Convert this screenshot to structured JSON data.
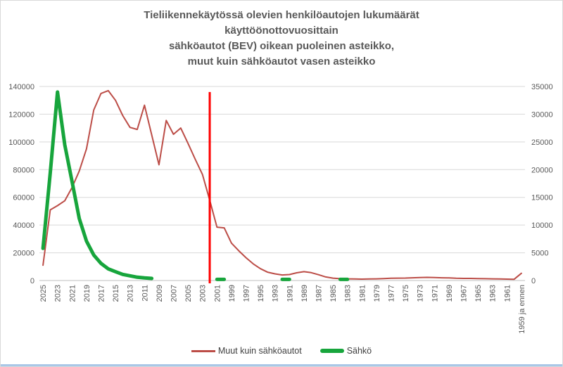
{
  "chart_data": {
    "type": "line",
    "title": "Tieliikennekäytössä olevien henkilöautojen lukumäärät\nkäyttöönottovuosittain\nsähköautot (BEV) oikean puoleinen asteikko,\nmuut kuin sähköautot vasen asteikko",
    "categories": [
      "2025",
      "2024",
      "2023",
      "2022",
      "2021",
      "2020",
      "2019",
      "2018",
      "2017",
      "2016",
      "2015",
      "2014",
      "2013",
      "2012",
      "2011",
      "2010",
      "2009",
      "2008",
      "2007",
      "2006",
      "2005",
      "2004",
      "2003",
      "2002",
      "2001",
      "2000",
      "1999",
      "1998",
      "1997",
      "1996",
      "1995",
      "1994",
      "1993",
      "1992",
      "1991",
      "1990",
      "1989",
      "1988",
      "1987",
      "1986",
      "1985",
      "1984",
      "1983",
      "1982",
      "1981",
      "1980",
      "1979",
      "1978",
      "1977",
      "1976",
      "1975",
      "1974",
      "1973",
      "1972",
      "1971",
      "1970",
      "1969",
      "1968",
      "1967",
      "1966",
      "1965",
      "1964",
      "1963",
      "1962",
      "1961",
      "1960",
      "1959 ja ennen"
    ],
    "x_tick_every": 2,
    "grid": true,
    "legend_position": "bottom",
    "left_axis": {
      "min": 0,
      "max": 140000,
      "step": 20000,
      "ticks": [
        0,
        20000,
        40000,
        60000,
        80000,
        100000,
        120000,
        140000
      ]
    },
    "right_axis": {
      "min": 0,
      "max": 35000,
      "step": 5000,
      "ticks": [
        0,
        5000,
        10000,
        15000,
        20000,
        25000,
        30000,
        35000
      ]
    },
    "series": [
      {
        "name": "Muut kuin sähköautot",
        "axis": "left",
        "color": "#BC4D47",
        "stroke_width": 2,
        "values": [
          11000,
          51000,
          54000,
          57500,
          67000,
          79000,
          95000,
          123000,
          135000,
          137000,
          130000,
          119000,
          110500,
          109000,
          126500,
          105000,
          83500,
          115500,
          105500,
          110000,
          99000,
          87500,
          76500,
          58000,
          38500,
          38000,
          27000,
          21500,
          16500,
          12000,
          8500,
          6000,
          4800,
          4000,
          4300,
          5600,
          6400,
          5700,
          4200,
          2600,
          1700,
          1300,
          1200,
          1100,
          1000,
          1100,
          1200,
          1400,
          1600,
          1700,
          1800,
          2000,
          2200,
          2300,
          2200,
          2000,
          1900,
          1600,
          1500,
          1500,
          1400,
          1300,
          1200,
          1100,
          1000,
          900,
          5200
        ]
      },
      {
        "name": "Sähkö",
        "axis": "right",
        "color": "#17A53C",
        "stroke_width": 5,
        "values": [
          5800,
          19400,
          34000,
          24500,
          17900,
          11200,
          7100,
          4600,
          3100,
          2100,
          1600,
          1100,
          850,
          600,
          470,
          380,
          null,
          null,
          null,
          null,
          null,
          null,
          null,
          null,
          200,
          200,
          null,
          null,
          null,
          null,
          null,
          null,
          null,
          200,
          200,
          null,
          null,
          null,
          null,
          null,
          null,
          200,
          200,
          null,
          null,
          null,
          null,
          null,
          null,
          null,
          null,
          null,
          null,
          null,
          null,
          null,
          null,
          null,
          null,
          null,
          null,
          null,
          null,
          null,
          null,
          null,
          null
        ]
      }
    ],
    "annotation_line": {
      "category": "2002",
      "color": "#FF0000",
      "stroke_width": 3,
      "top_value_left_axis": 136000
    }
  },
  "colors": {
    "text": "#595959",
    "grid": "#D9D9D9",
    "axis": "#BFBFBF",
    "background": "#FFFFFF",
    "bottom_strip": "#A9C7E7"
  }
}
